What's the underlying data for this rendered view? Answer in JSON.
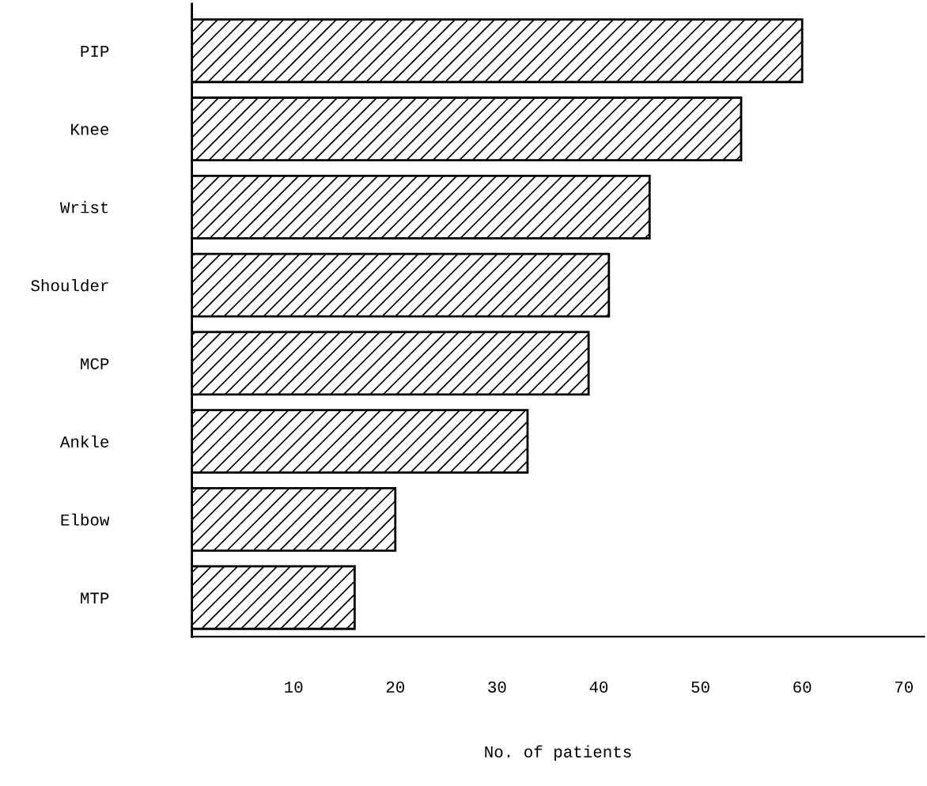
{
  "chart_data": {
    "type": "bar",
    "orientation": "horizontal",
    "xlabel": "No. of patients",
    "categories": [
      "PIP",
      "Knee",
      "Wrist",
      "Shoulder",
      "MCP",
      "Ankle",
      "Elbow",
      "MTP"
    ],
    "values": [
      60,
      54,
      45,
      41,
      39,
      33,
      20,
      16
    ],
    "color": "#000000",
    "xlim": [
      0,
      72
    ],
    "xticks": [
      10,
      20,
      30,
      40,
      50,
      60,
      70
    ],
    "grid": false
  }
}
